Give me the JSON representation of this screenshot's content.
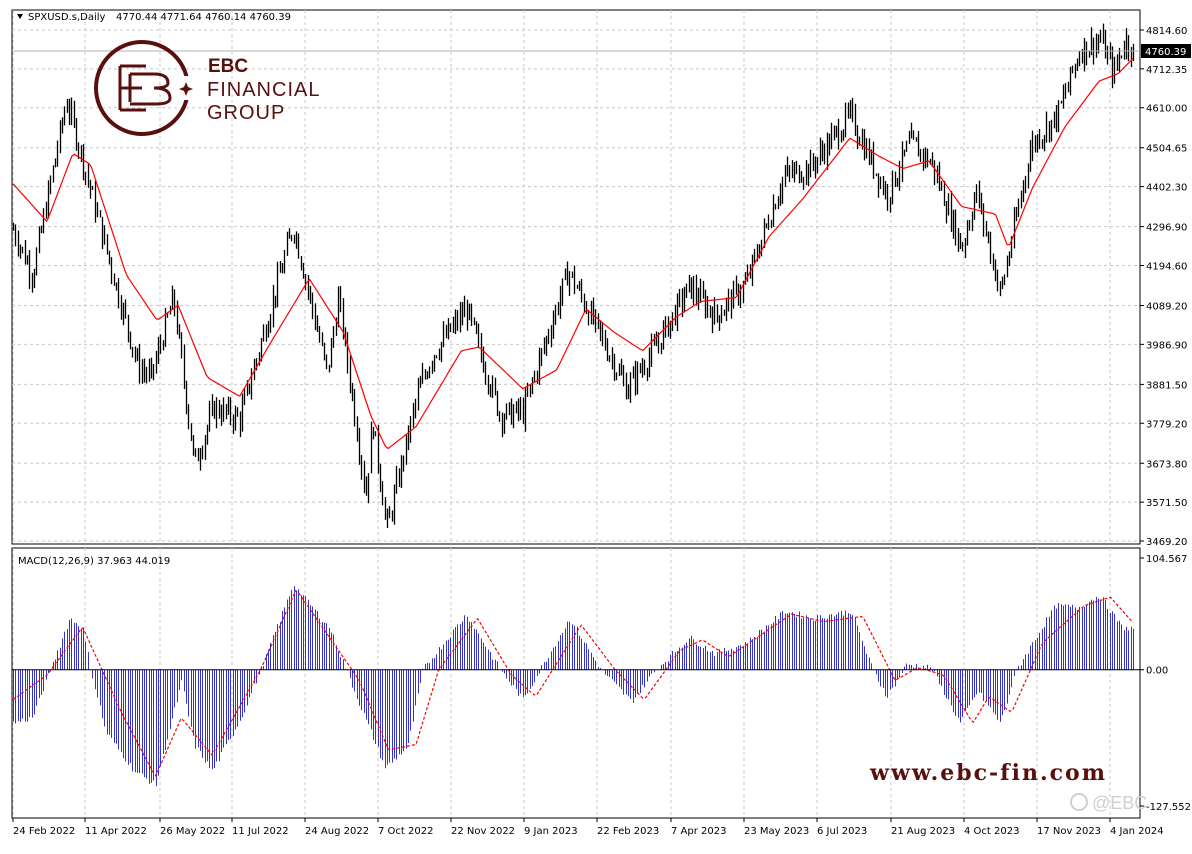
{
  "window": {
    "symbol": "SPXUSD.s,Daily",
    "ohlc": "4770.44 4771.64 4760.14 4760.39",
    "last_price_tag": "4760.39"
  },
  "branding": {
    "name": "EBC",
    "line1": "FINANCIAL",
    "line2": "GROUP",
    "website": "www.ebc-fin.com",
    "wechat": "@EBC"
  },
  "colors": {
    "candle": "#000000",
    "ma_line": "#ff0000",
    "macd_hist": "#3333cc",
    "macd_signal": "#ff0000",
    "grid": "#c8c8c8",
    "brand": "#5a0f0f"
  },
  "chart_data": [
    {
      "type": "candlestick",
      "title": "SPXUSD.s,Daily",
      "y_ticks": [
        "4814.60",
        "4712.35",
        "4610.00",
        "4504.65",
        "4402.30",
        "4296.90",
        "4194.60",
        "4089.20",
        "3986.90",
        "3881.50",
        "3779.20",
        "3673.80",
        "3571.50",
        "3469.20"
      ],
      "ylim": [
        3469.2,
        4814.6
      ],
      "x_ticks": [
        "24 Feb 2022",
        "11 Apr 2022",
        "26 May 2022",
        "11 Jul 2022",
        "24 Aug 2022",
        "7 Oct 2022",
        "22 Nov 2022",
        "9 Jan 2023",
        "22 Feb 2023",
        "7 Apr 2023",
        "23 May 2023",
        "6 Jul 2023",
        "21 Aug 2023",
        "4 Oct 2023",
        "17 Nov 2023",
        "4 Jan 2024"
      ],
      "close_path": [
        {
          "x": "2022-02-24",
          "y": 4290
        },
        {
          "x": "2022-03-08",
          "y": 4170
        },
        {
          "x": "2022-03-29",
          "y": 4630
        },
        {
          "x": "2022-04-05",
          "y": 4520
        },
        {
          "x": "2022-04-26",
          "y": 4180
        },
        {
          "x": "2022-05-12",
          "y": 3930
        },
        {
          "x": "2022-05-20",
          "y": 3900
        },
        {
          "x": "2022-06-03",
          "y": 4110
        },
        {
          "x": "2022-06-16",
          "y": 3670
        },
        {
          "x": "2022-06-28",
          "y": 3820
        },
        {
          "x": "2022-07-14",
          "y": 3790
        },
        {
          "x": "2022-08-16",
          "y": 4300
        },
        {
          "x": "2022-09-06",
          "y": 3910
        },
        {
          "x": "2022-09-13",
          "y": 4110
        },
        {
          "x": "2022-09-30",
          "y": 3590
        },
        {
          "x": "2022-10-04",
          "y": 3790
        },
        {
          "x": "2022-10-13",
          "y": 3500
        },
        {
          "x": "2022-11-01",
          "y": 3860
        },
        {
          "x": "2022-11-10",
          "y": 3960
        },
        {
          "x": "2022-12-01",
          "y": 4080
        },
        {
          "x": "2022-12-22",
          "y": 3800
        },
        {
          "x": "2023-01-05",
          "y": 3810
        },
        {
          "x": "2023-02-02",
          "y": 4180
        },
        {
          "x": "2023-03-10",
          "y": 3870
        },
        {
          "x": "2023-03-28",
          "y": 3980
        },
        {
          "x": "2023-04-18",
          "y": 4140
        },
        {
          "x": "2023-05-04",
          "y": 4060
        },
        {
          "x": "2023-05-23",
          "y": 4150
        },
        {
          "x": "2023-06-15",
          "y": 4430
        },
        {
          "x": "2023-07-01",
          "y": 4450
        },
        {
          "x": "2023-07-26",
          "y": 4590
        },
        {
          "x": "2023-08-18",
          "y": 4380
        },
        {
          "x": "2023-09-01",
          "y": 4520
        },
        {
          "x": "2023-09-15",
          "y": 4460
        },
        {
          "x": "2023-10-03",
          "y": 4240
        },
        {
          "x": "2023-10-12",
          "y": 4390
        },
        {
          "x": "2023-10-27",
          "y": 4120
        },
        {
          "x": "2023-11-15",
          "y": 4510
        },
        {
          "x": "2023-12-01",
          "y": 4590
        },
        {
          "x": "2023-12-15",
          "y": 4760
        },
        {
          "x": "2023-12-28",
          "y": 4790
        },
        {
          "x": "2024-01-05",
          "y": 4700
        },
        {
          "x": "2024-01-12",
          "y": 4790
        },
        {
          "x": "2024-01-17",
          "y": 4760
        }
      ],
      "ma_path": [
        {
          "x": "2022-02-24",
          "y": 4410
        },
        {
          "x": "2022-03-17",
          "y": 4310
        },
        {
          "x": "2022-04-02",
          "y": 4490
        },
        {
          "x": "2022-04-13",
          "y": 4460
        },
        {
          "x": "2022-05-05",
          "y": 4170
        },
        {
          "x": "2022-05-24",
          "y": 4050
        },
        {
          "x": "2022-06-06",
          "y": 4090
        },
        {
          "x": "2022-06-24",
          "y": 3900
        },
        {
          "x": "2022-07-14",
          "y": 3850
        },
        {
          "x": "2022-08-02",
          "y": 3990
        },
        {
          "x": "2022-08-26",
          "y": 4160
        },
        {
          "x": "2022-09-16",
          "y": 4020
        },
        {
          "x": "2022-10-03",
          "y": 3800
        },
        {
          "x": "2022-10-13",
          "y": 3710
        },
        {
          "x": "2022-10-31",
          "y": 3770
        },
        {
          "x": "2022-11-28",
          "y": 3970
        },
        {
          "x": "2022-12-09",
          "y": 3980
        },
        {
          "x": "2023-01-05",
          "y": 3870
        },
        {
          "x": "2023-01-26",
          "y": 3920
        },
        {
          "x": "2023-02-13",
          "y": 4080
        },
        {
          "x": "2023-03-02",
          "y": 4020
        },
        {
          "x": "2023-03-20",
          "y": 3970
        },
        {
          "x": "2023-04-10",
          "y": 4060
        },
        {
          "x": "2023-04-25",
          "y": 4100
        },
        {
          "x": "2023-05-17",
          "y": 4110
        },
        {
          "x": "2023-06-06",
          "y": 4270
        },
        {
          "x": "2023-06-27",
          "y": 4370
        },
        {
          "x": "2023-07-26",
          "y": 4530
        },
        {
          "x": "2023-08-14",
          "y": 4480
        },
        {
          "x": "2023-08-28",
          "y": 4450
        },
        {
          "x": "2023-09-13",
          "y": 4470
        },
        {
          "x": "2023-10-03",
          "y": 4350
        },
        {
          "x": "2023-10-24",
          "y": 4330
        },
        {
          "x": "2023-11-01",
          "y": 4240
        },
        {
          "x": "2023-11-16",
          "y": 4400
        },
        {
          "x": "2023-12-06",
          "y": 4560
        },
        {
          "x": "2023-12-27",
          "y": 4680
        },
        {
          "x": "2024-01-08",
          "y": 4700
        },
        {
          "x": "2024-01-17",
          "y": 4740
        }
      ]
    },
    {
      "type": "bar",
      "title": "MACD(12,26,9) 37.963 44.019",
      "y_ticks": [
        "104.567",
        "0.00",
        "-127.552"
      ],
      "ylim": [
        -127.552,
        104.567
      ],
      "macd_path": [
        {
          "x": "2022-02-24",
          "y": -50
        },
        {
          "x": "2022-03-08",
          "y": -45
        },
        {
          "x": "2022-03-31",
          "y": 48
        },
        {
          "x": "2022-04-08",
          "y": 40
        },
        {
          "x": "2022-04-13",
          "y": 0
        },
        {
          "x": "2022-04-22",
          "y": -58
        },
        {
          "x": "2022-05-10",
          "y": -95
        },
        {
          "x": "2022-05-23",
          "y": -108
        },
        {
          "x": "2022-06-08",
          "y": -12
        },
        {
          "x": "2022-06-16",
          "y": -70
        },
        {
          "x": "2022-06-27",
          "y": -95
        },
        {
          "x": "2022-07-15",
          "y": -45
        },
        {
          "x": "2022-07-27",
          "y": 0
        },
        {
          "x": "2022-08-16",
          "y": 80
        },
        {
          "x": "2022-09-08",
          "y": 38
        },
        {
          "x": "2022-09-26",
          "y": -32
        },
        {
          "x": "2022-10-12",
          "y": -92
        },
        {
          "x": "2022-10-26",
          "y": -72
        },
        {
          "x": "2022-11-04",
          "y": 0
        },
        {
          "x": "2022-12-01",
          "y": 52
        },
        {
          "x": "2022-12-22",
          "y": 0
        },
        {
          "x": "2023-01-05",
          "y": -28
        },
        {
          "x": "2023-02-03",
          "y": 48
        },
        {
          "x": "2023-02-22",
          "y": 0
        },
        {
          "x": "2023-03-13",
          "y": -30
        },
        {
          "x": "2023-03-28",
          "y": 0
        },
        {
          "x": "2023-04-18",
          "y": 30
        },
        {
          "x": "2023-05-04",
          "y": 15
        },
        {
          "x": "2023-05-23",
          "y": 25
        },
        {
          "x": "2023-06-16",
          "y": 55
        },
        {
          "x": "2023-07-03",
          "y": 48
        },
        {
          "x": "2023-07-27",
          "y": 55
        },
        {
          "x": "2023-08-09",
          "y": 0
        },
        {
          "x": "2023-08-18",
          "y": -25
        },
        {
          "x": "2023-08-30",
          "y": 5
        },
        {
          "x": "2023-09-14",
          "y": 2
        },
        {
          "x": "2023-10-02",
          "y": -50
        },
        {
          "x": "2023-10-13",
          "y": -20
        },
        {
          "x": "2023-10-27",
          "y": -50
        },
        {
          "x": "2023-11-06",
          "y": 0
        },
        {
          "x": "2023-11-30",
          "y": 60
        },
        {
          "x": "2023-12-14",
          "y": 58
        },
        {
          "x": "2023-12-27",
          "y": 70
        },
        {
          "x": "2024-01-10",
          "y": 40
        },
        {
          "x": "2024-01-17",
          "y": 38
        }
      ],
      "signal_path": [
        {
          "x": "2022-02-24",
          "y": -28
        },
        {
          "x": "2022-03-17",
          "y": -5
        },
        {
          "x": "2022-04-08",
          "y": 40
        },
        {
          "x": "2022-05-02",
          "y": -40
        },
        {
          "x": "2022-05-23",
          "y": -100
        },
        {
          "x": "2022-06-08",
          "y": -45
        },
        {
          "x": "2022-06-27",
          "y": -80
        },
        {
          "x": "2022-07-27",
          "y": 0
        },
        {
          "x": "2022-08-18",
          "y": 75
        },
        {
          "x": "2022-09-26",
          "y": -10
        },
        {
          "x": "2022-10-14",
          "y": -75
        },
        {
          "x": "2022-10-31",
          "y": -70
        },
        {
          "x": "2022-11-14",
          "y": 0
        },
        {
          "x": "2022-12-08",
          "y": 48
        },
        {
          "x": "2022-12-29",
          "y": -5
        },
        {
          "x": "2023-01-13",
          "y": -25
        },
        {
          "x": "2023-02-10",
          "y": 42
        },
        {
          "x": "2023-03-03",
          "y": 0
        },
        {
          "x": "2023-03-21",
          "y": -28
        },
        {
          "x": "2023-04-12",
          "y": 18
        },
        {
          "x": "2023-04-26",
          "y": 28
        },
        {
          "x": "2023-05-12",
          "y": 12
        },
        {
          "x": "2023-06-20",
          "y": 52
        },
        {
          "x": "2023-07-10",
          "y": 45
        },
        {
          "x": "2023-08-03",
          "y": 50
        },
        {
          "x": "2023-08-23",
          "y": -10
        },
        {
          "x": "2023-09-06",
          "y": 2
        },
        {
          "x": "2023-09-22",
          "y": -5
        },
        {
          "x": "2023-10-10",
          "y": -50
        },
        {
          "x": "2023-10-20",
          "y": -25
        },
        {
          "x": "2023-11-03",
          "y": -40
        },
        {
          "x": "2023-11-22",
          "y": 25
        },
        {
          "x": "2023-12-18",
          "y": 60
        },
        {
          "x": "2024-01-03",
          "y": 68
        },
        {
          "x": "2024-01-17",
          "y": 44
        }
      ]
    }
  ]
}
